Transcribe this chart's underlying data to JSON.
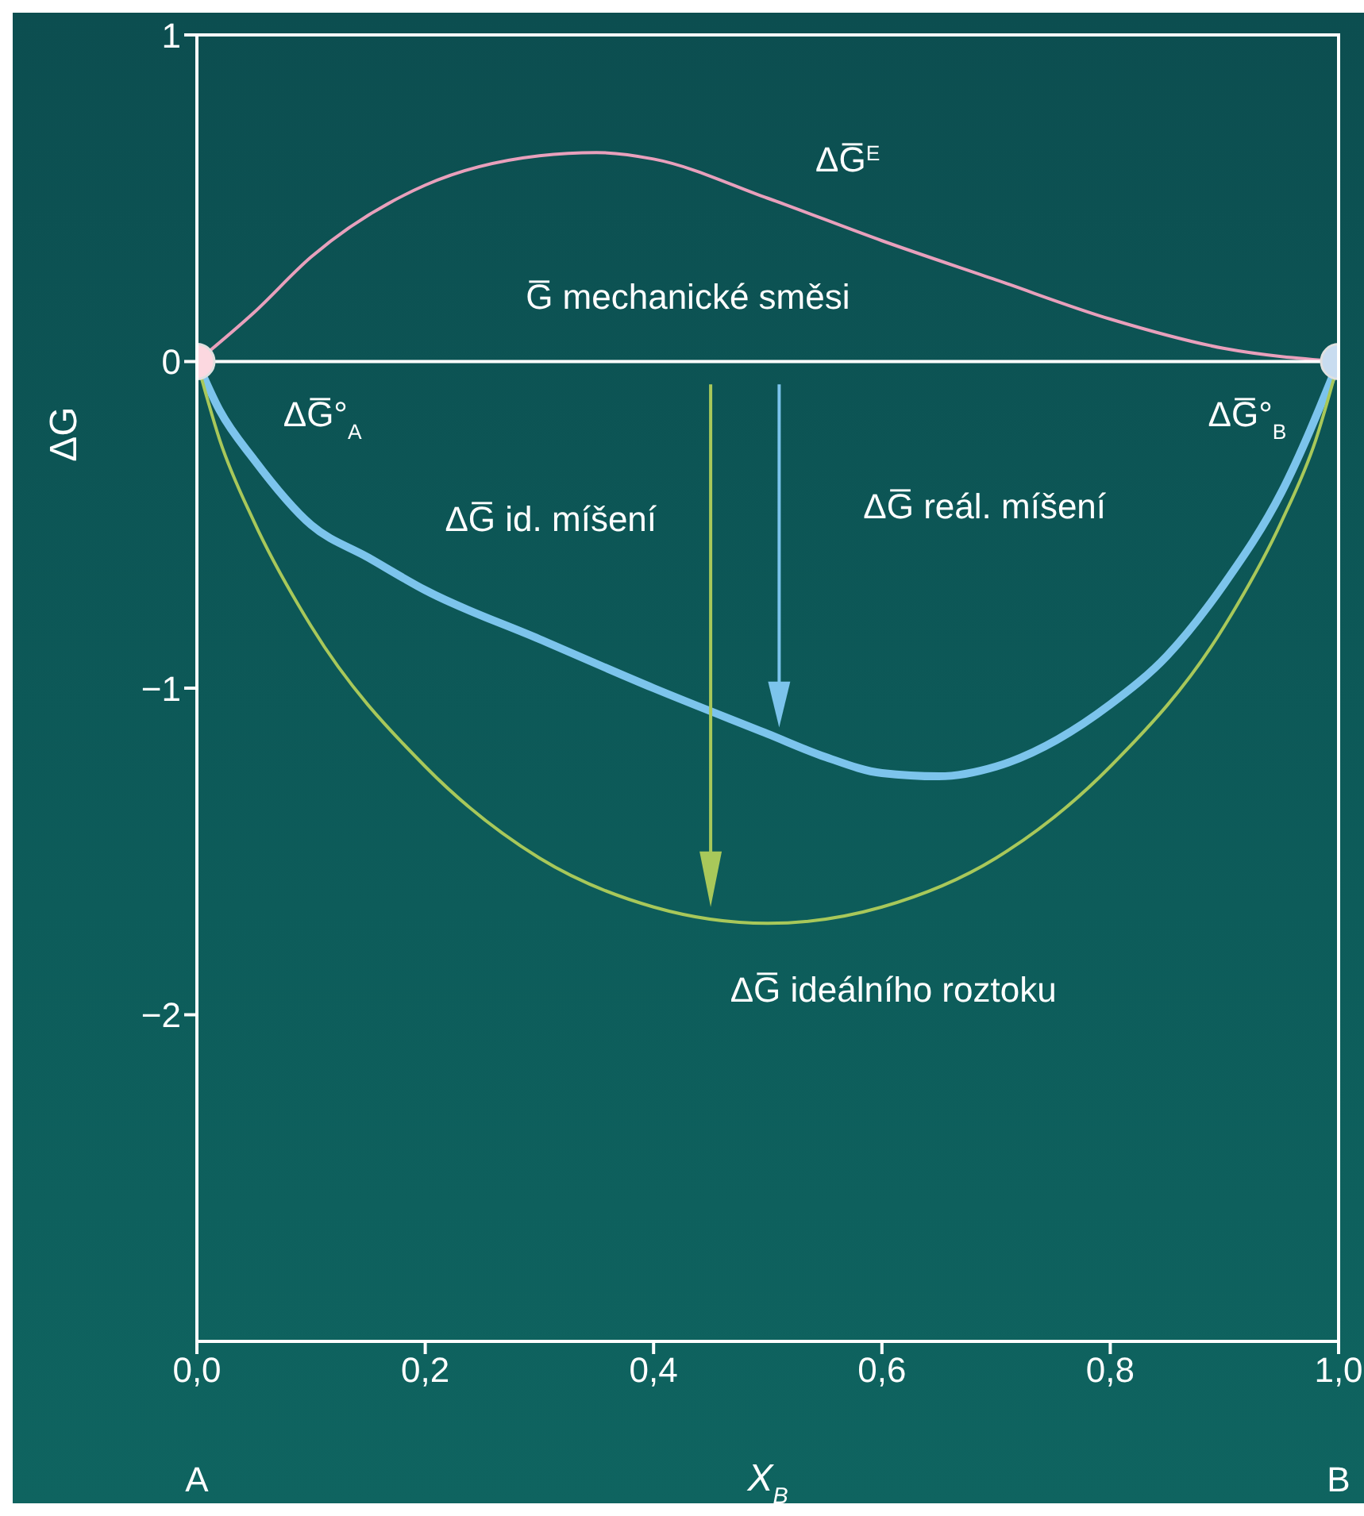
{
  "chart_data": {
    "type": "line",
    "xlabel": "X$_{B}$",
    "ylabel": "ΔG",
    "xlim": [
      0,
      1
    ],
    "ylim": [
      -3,
      1
    ],
    "xticks": [
      {
        "value": 0,
        "label": "0,0"
      },
      {
        "value": 0.2,
        "label": "0,2"
      },
      {
        "value": 0.4,
        "label": "0,4"
      },
      {
        "value": 0.6,
        "label": "0,6"
      },
      {
        "value": 0.8,
        "label": "0,8"
      },
      {
        "value": 1,
        "label": "1,0"
      }
    ],
    "yticks": [
      {
        "value": -2,
        "label": "−2"
      },
      {
        "value": -1,
        "label": "−1"
      },
      0,
      1
    ],
    "grid": false,
    "marker": "none",
    "line_style": "solid",
    "series": [
      {
        "color": "#e8a0bc",
        "x": [
          0,
          0.05,
          0.1,
          0.2,
          0.3,
          0.35,
          0.4,
          0.5,
          0.6,
          0.7,
          0.8,
          0.9,
          1
        ],
        "values": [
          0,
          0.15,
          0.32,
          0.54,
          0.63,
          0.64,
          0.62,
          0.5,
          0.37,
          0.25,
          0.13,
          0.04,
          0
        ]
      },
      {
        "color": "#ffffff",
        "x": [
          0,
          1
        ],
        "values": [
          0,
          0
        ]
      },
      {
        "color": "#7cc4ec",
        "x": [
          0,
          0.02,
          0.05,
          0.1,
          0.15,
          0.2,
          0.3,
          0.4,
          0.5,
          0.55,
          0.6,
          0.65,
          0.7,
          0.8,
          0.85,
          0.9,
          0.95,
          1
        ],
        "values": [
          0,
          -0.15,
          -0.3,
          -0.5,
          -0.6,
          -0.7,
          -0.85,
          -1,
          -1.14,
          -1.21,
          -1.26,
          -1.27,
          -1.24,
          -1.05,
          -0.9,
          -0.68,
          -0.4,
          0
        ]
      },
      {
        "color": "#a8c85a",
        "x": [
          0,
          0.02,
          0.05,
          0.1,
          0.2,
          0.3,
          0.4,
          0.5,
          0.6,
          0.7,
          0.8,
          0.9,
          0.95,
          0.98,
          1
        ],
        "values": [
          0,
          -0.24,
          -0.49,
          -0.81,
          -1.24,
          -1.52,
          -1.67,
          -1.72,
          -1.67,
          -1.52,
          -1.24,
          -0.81,
          -0.49,
          -0.24,
          0
        ]
      },
      {
        "type": "scatter",
        "marker": "circle",
        "color": "#fcd8e0",
        "x": [
          0
        ],
        "values": [
          0
        ]
      },
      {
        "type": "scatter",
        "marker": "circle",
        "color": "#c8dcf0",
        "x": [
          1
        ],
        "values": [
          0
        ]
      }
    ],
    "annotations": [
      "ΔG̅$^{E}$",
      "G̅ mechanické směsi",
      "ΔG̅°$_{A}$",
      "ΔG̅°$_{B}$",
      "ΔG̅ id. míšení",
      "ΔG̅ reál. míšení",
      "ΔG̅ ideálního roztoku",
      "A",
      "B"
    ]
  }
}
